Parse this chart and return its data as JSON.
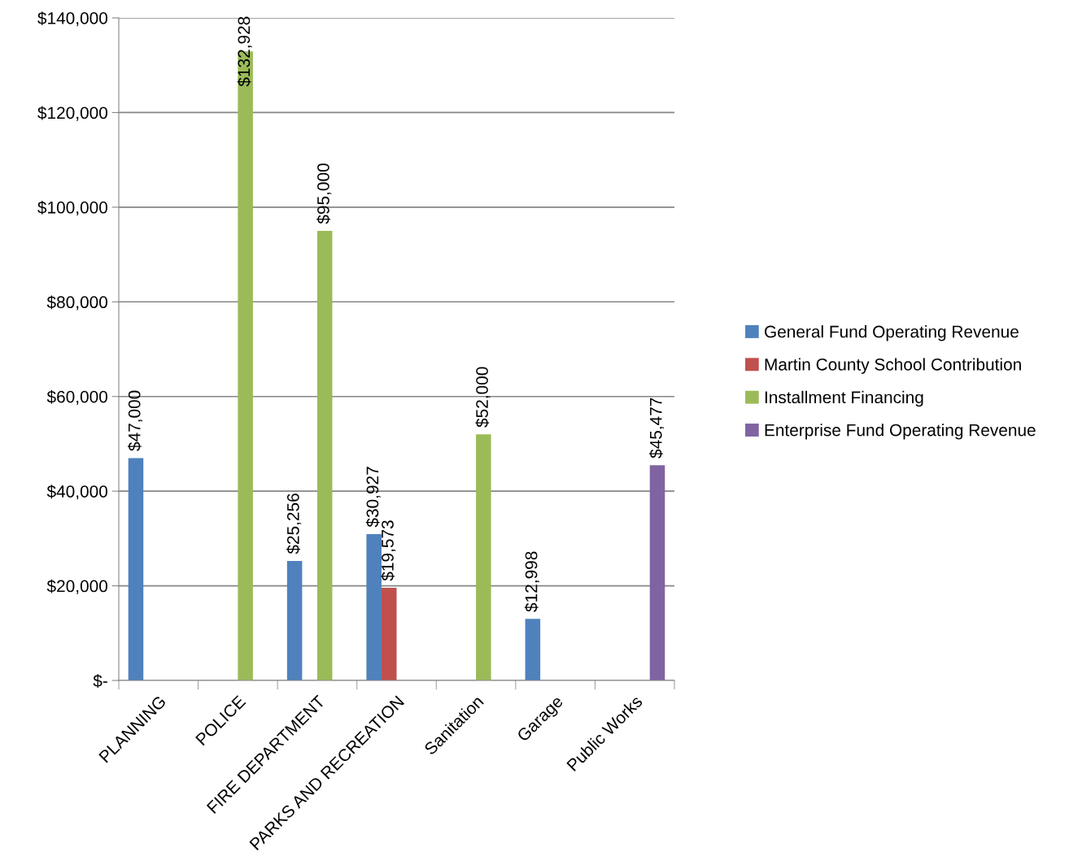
{
  "chart_data": {
    "type": "bar",
    "categories": [
      "PLANNING",
      "POLICE",
      "FIRE DEPARTMENT",
      "PARKS AND RECREATION",
      "Sanitation",
      "Garage",
      "Public Works"
    ],
    "series": [
      {
        "name": "General Fund Operating Revenue",
        "color": "#4f81bd",
        "values": [
          47000,
          null,
          25256,
          30927,
          null,
          12998,
          null
        ],
        "value_labels": [
          "$47,000",
          null,
          "$25,256",
          "$30,927",
          null,
          "$12,998",
          null
        ]
      },
      {
        "name": "Martin County School Contribution",
        "color": "#c0504d",
        "values": [
          null,
          null,
          null,
          19573,
          null,
          null,
          null
        ],
        "value_labels": [
          null,
          null,
          null,
          "$19,573",
          null,
          null,
          null
        ]
      },
      {
        "name": "Installment Financing",
        "color": "#9bbb59",
        "values": [
          null,
          132928,
          95000,
          null,
          52000,
          null,
          null
        ],
        "value_labels": [
          null,
          "$132,928",
          "$95,000",
          null,
          "$52,000",
          null,
          null
        ]
      },
      {
        "name": "Enterprise Fund Operating Revenue",
        "color": "#8064a2",
        "values": [
          null,
          null,
          null,
          null,
          null,
          null,
          45477
        ],
        "value_labels": [
          null,
          null,
          null,
          null,
          null,
          null,
          "$45,477"
        ]
      }
    ],
    "ylim": [
      0,
      140000
    ],
    "yticks": [
      {
        "value": 0,
        "label": "$-"
      },
      {
        "value": 20000,
        "label": "$20,000"
      },
      {
        "value": 40000,
        "label": "$40,000"
      },
      {
        "value": 60000,
        "label": "$60,000"
      },
      {
        "value": 80000,
        "label": "$80,000"
      },
      {
        "value": 100000,
        "label": "$100,000"
      },
      {
        "value": 120000,
        "label": "$120,000"
      },
      {
        "value": 140000,
        "label": "$140,000"
      }
    ],
    "grid": "y",
    "legend": "right"
  }
}
